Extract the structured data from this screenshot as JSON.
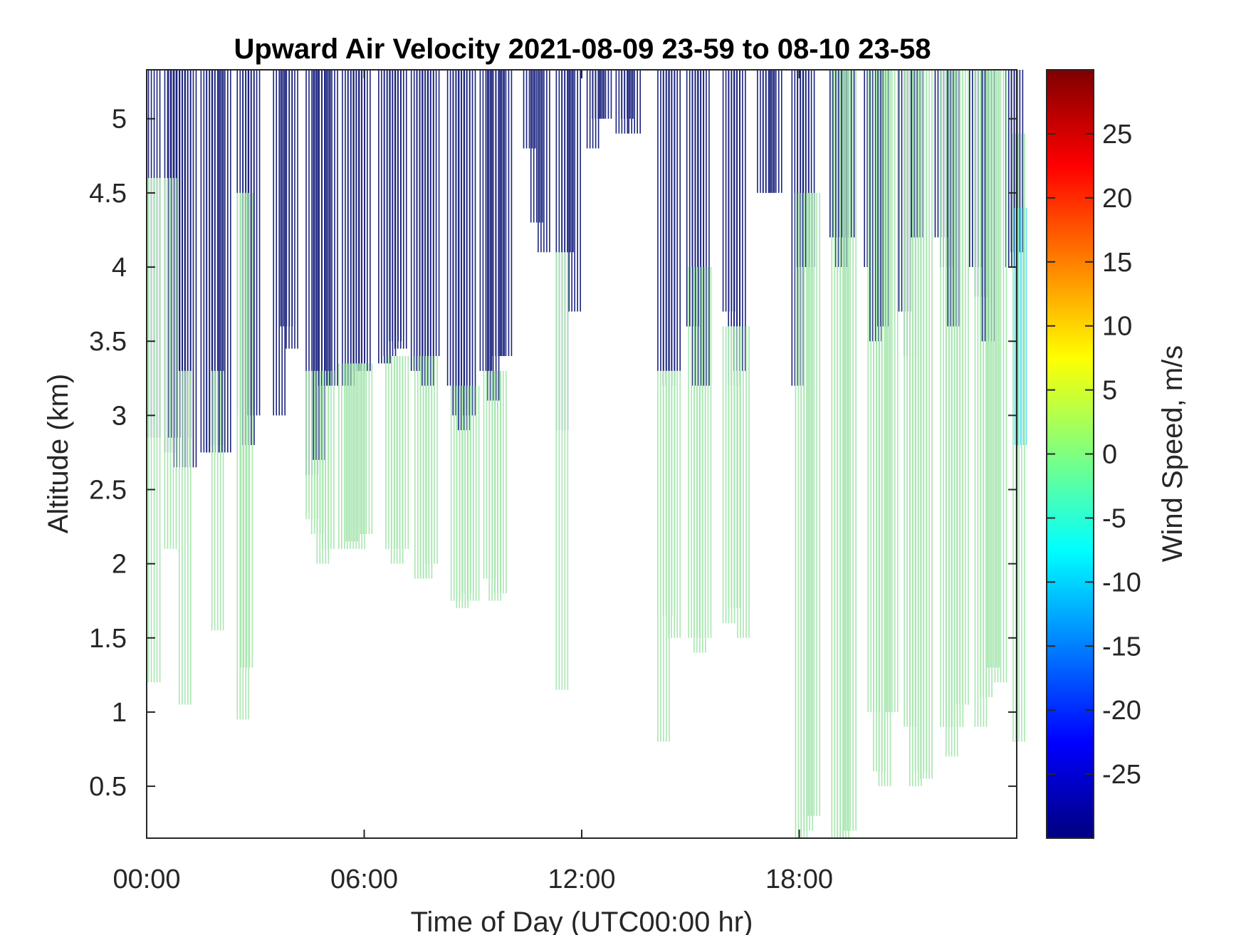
{
  "chart_data": {
    "type": "heatmap",
    "title": "Upward Air Velocity 2021-08-09 23-59 to 08-10 23-58",
    "xlabel": "Time of Day (UTC00:00 hr)",
    "ylabel": "Altitude (km)",
    "colorbar_label": "Wind Speed, m/s",
    "xlim": [
      0,
      24
    ],
    "ylim": [
      0.15,
      5.33
    ],
    "x_ticks": [
      0,
      6,
      12,
      18
    ],
    "x_tick_labels": [
      "00:00",
      "06:00",
      "12:00",
      "18:00"
    ],
    "y_ticks": [
      0.5,
      1,
      1.5,
      2,
      2.5,
      3,
      3.5,
      4,
      4.5,
      5
    ],
    "y_tick_labels": [
      "0.5",
      "1",
      "1.5",
      "2",
      "2.5",
      "3",
      "3.5",
      "4",
      "4.5",
      "5"
    ],
    "clim": [
      -30,
      30
    ],
    "colorbar_ticks": [
      -25,
      -20,
      -15,
      -10,
      -5,
      0,
      5,
      10,
      15,
      20,
      25
    ],
    "colorbar_tick_labels": [
      "-25",
      "-20",
      "-15",
      "-10",
      "-5",
      "0",
      "5",
      "10",
      "15",
      "20",
      "25"
    ],
    "colormap": "jet",
    "grid": false,
    "series": [
      {
        "value": -30,
        "color": "#1a237e",
        "x": [
          0.05,
          0.5,
          0.6,
          0.75,
          0.9,
          1.05,
          1.5,
          1.65,
          1.8,
          2.0,
          2.5,
          2.65,
          2.8,
          3.5,
          3.7,
          3.85,
          4.4,
          4.6,
          4.75,
          4.95,
          5.4,
          5.55,
          5.7,
          5.85,
          6.4,
          6.55,
          6.7,
          6.85,
          7.3,
          7.45,
          7.6,
          7.75,
          8.3,
          8.45,
          8.6,
          8.75,
          9.2,
          9.4,
          9.55,
          9.75,
          10.4,
          10.6,
          10.8,
          11.3,
          11.45,
          11.65,
          12.15,
          12.3,
          12.5,
          12.95,
          13.1,
          13.3,
          14.1,
          14.25,
          14.4,
          14.9,
          15.05,
          15.2,
          15.9,
          16.05,
          16.2,
          16.85,
          17.0,
          17.2,
          17.8,
          17.95,
          18.1,
          18.85,
          19.0,
          19.2,
          19.8,
          19.95,
          20.15,
          20.75,
          20.9,
          21.1,
          21.75,
          21.9,
          22.1,
          22.7,
          22.85,
          23.05,
          23.7,
          23.85
        ],
        "y0": [
          2.85,
          2.75,
          2.85,
          2.65,
          2.85,
          2.65,
          2.75,
          2.75,
          2.8,
          2.75,
          3.0,
          2.8,
          3.0,
          3.0,
          3.6,
          3.45,
          2.6,
          2.7,
          3.2,
          3.2,
          3.2,
          3.3,
          3.3,
          3.3,
          3.35,
          3.4,
          3.5,
          3.45,
          3.3,
          3.3,
          3.2,
          3.4,
          3.2,
          3.0,
          2.9,
          3.0,
          3.3,
          3.1,
          3.4,
          3.4,
          4.8,
          4.3,
          4.1,
          2.9,
          4.1,
          3.7,
          4.8,
          5.0,
          5.0,
          4.9,
          5.0,
          4.9,
          3.3,
          3.2,
          3.3,
          3.6,
          3.2,
          3.2,
          3.7,
          3.2,
          3.3,
          4.5,
          4.5,
          4.5,
          3.2,
          4.0,
          4.0,
          4.2,
          4.0,
          4.2,
          4.0,
          3.5,
          3.6,
          3.7,
          3.4,
          4.2,
          4.2,
          4.0,
          3.6,
          4.0,
          3.8,
          3.5,
          4.0,
          4.1
        ],
        "y1": [
          5.33,
          5.33,
          5.33,
          5.33,
          5.33,
          5.33,
          5.33,
          5.33,
          5.33,
          5.33,
          5.33,
          5.33,
          5.33,
          5.33,
          5.33,
          5.33,
          5.33,
          5.33,
          5.33,
          5.33,
          5.33,
          5.33,
          5.33,
          5.33,
          5.33,
          5.33,
          5.33,
          5.33,
          5.33,
          5.33,
          5.33,
          5.33,
          5.33,
          5.33,
          5.33,
          5.33,
          5.33,
          5.33,
          5.33,
          5.33,
          5.33,
          5.33,
          5.33,
          5.33,
          5.33,
          5.33,
          5.33,
          5.33,
          5.33,
          5.33,
          5.33,
          5.33,
          5.33,
          5.33,
          5.33,
          5.33,
          5.33,
          5.33,
          5.33,
          5.33,
          5.33,
          5.33,
          5.33,
          5.33,
          5.33,
          5.33,
          5.33,
          5.33,
          5.33,
          5.33,
          5.33,
          5.33,
          5.33,
          5.33,
          5.33,
          5.33,
          5.33,
          5.33,
          5.33,
          5.33,
          5.33,
          5.33,
          5.33,
          5.33
        ]
      },
      {
        "value": 0,
        "color": "#a8e6b0",
        "x": [
          0.05,
          0.5,
          0.9,
          1.8,
          2.5,
          2.6,
          4.4,
          4.55,
          4.7,
          4.85,
          5.3,
          5.5,
          5.7,
          5.9,
          6.6,
          6.75,
          6.9,
          7.4,
          7.55,
          7.7,
          8.4,
          8.55,
          8.7,
          8.85,
          9.3,
          9.45,
          9.6,
          11.3,
          14.1,
          14.25,
          14.4,
          14.95,
          15.1,
          15.25,
          15.9,
          16.05,
          16.3,
          17.9,
          18.05,
          18.25,
          18.9,
          19.05,
          19.25,
          19.9,
          20.05,
          20.2,
          20.4,
          20.9,
          21.05,
          21.2,
          21.35,
          21.9,
          22.05,
          22.2,
          22.35,
          22.85,
          23.0,
          23.2,
          23.4,
          23.9
        ],
        "y0": [
          1.2,
          2.1,
          1.05,
          1.55,
          0.95,
          1.3,
          2.3,
          2.2,
          2.0,
          2.1,
          2.1,
          2.15,
          2.1,
          2.2,
          2.1,
          2.0,
          2.1,
          1.9,
          1.9,
          2.0,
          1.75,
          1.7,
          1.8,
          1.75,
          1.9,
          1.75,
          1.8,
          1.15,
          0.8,
          1.65,
          1.5,
          1.5,
          1.4,
          1.5,
          1.6,
          1.7,
          1.5,
          0.15,
          0.2,
          0.3,
          0.15,
          0.15,
          0.2,
          1.0,
          0.6,
          0.5,
          1.0,
          0.9,
          0.5,
          0.6,
          0.55,
          0.9,
          0.7,
          0.9,
          1.05,
          0.9,
          1.1,
          1.3,
          1.2,
          0.8
        ],
        "y1": [
          4.6,
          4.6,
          3.3,
          3.3,
          4.5,
          4.5,
          3.3,
          3.3,
          3.3,
          3.3,
          3.35,
          3.35,
          3.35,
          3.35,
          3.4,
          3.4,
          3.4,
          3.4,
          3.4,
          3.4,
          3.2,
          3.2,
          3.2,
          3.2,
          3.3,
          3.3,
          3.3,
          4.1,
          3.3,
          3.3,
          3.3,
          4.0,
          4.0,
          4.0,
          3.6,
          3.6,
          3.6,
          4.5,
          4.5,
          4.5,
          5.33,
          5.33,
          5.33,
          5.33,
          5.33,
          5.33,
          5.33,
          5.33,
          5.33,
          5.33,
          5.33,
          5.33,
          5.33,
          5.33,
          5.33,
          5.33,
          5.33,
          5.33,
          5.33,
          4.9
        ]
      },
      {
        "value": -8,
        "color": "#5ee4f0",
        "x": [
          23.95
        ],
        "y0": [
          2.8
        ],
        "y1": [
          4.4
        ]
      }
    ]
  }
}
